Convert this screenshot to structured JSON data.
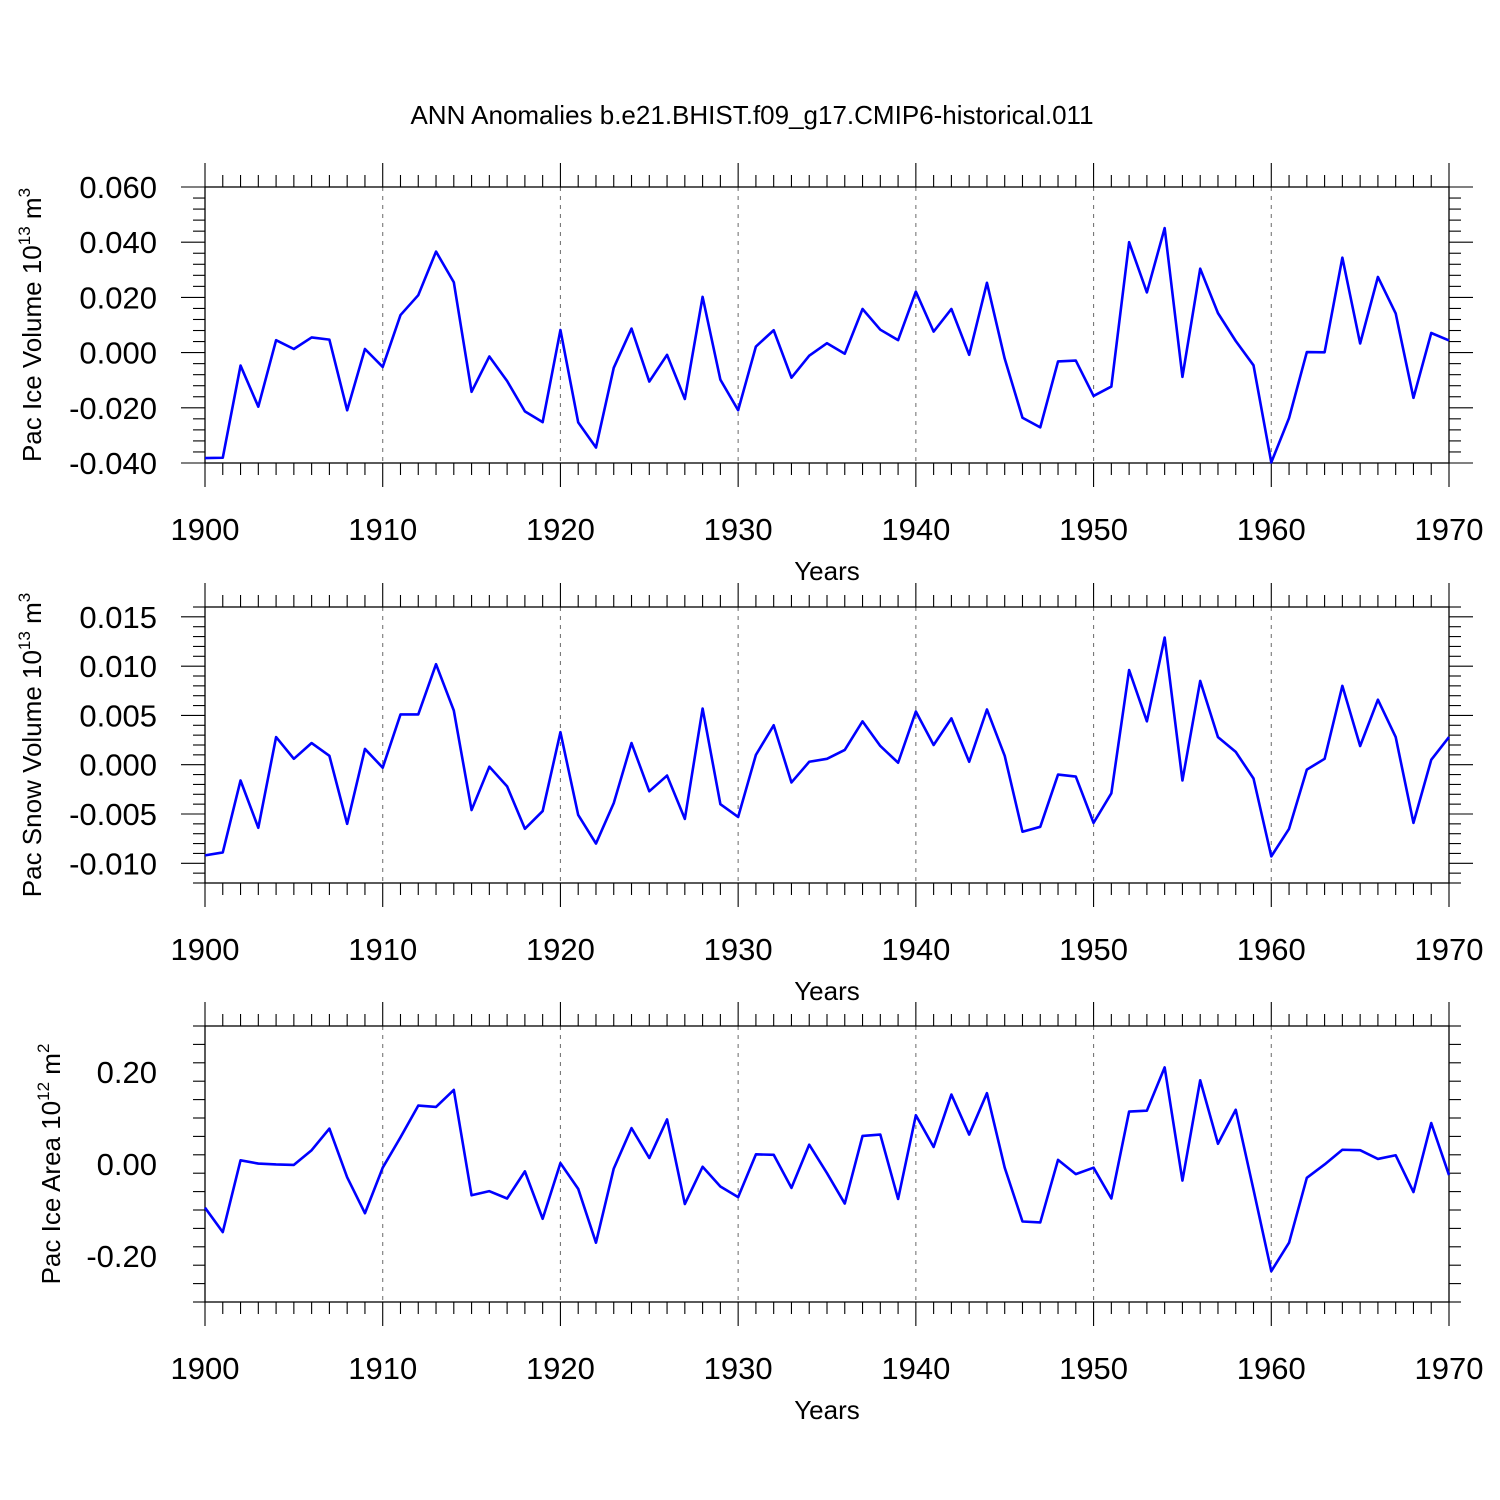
{
  "title": "ANN Anomalies b.e21.BHIST.f09_g17.CMIP6-historical.011",
  "line_color": "#0000ff",
  "chart_data": [
    {
      "type": "line",
      "title": "",
      "xlabel": "Years",
      "ylabel": {
        "main": "Pac Ice Volume 10",
        "exp1": "13",
        "unit": " m",
        "exp2": "3"
      },
      "xlim": [
        1900,
        1970
      ],
      "ylim": [
        -0.04,
        0.06
      ],
      "yticks": [
        -0.04,
        -0.02,
        0.0,
        0.02,
        0.04,
        0.06
      ],
      "ytick_labels": [
        "-0.040",
        "-0.020",
        "0.000",
        "0.020",
        "0.040",
        "0.060"
      ],
      "xticks": [
        1900,
        1910,
        1920,
        1930,
        1940,
        1950,
        1960,
        1970
      ],
      "xtick_labels": [
        "1900",
        "1910",
        "1920",
        "1930",
        "1940",
        "1950",
        "1960",
        "1970"
      ],
      "grid": "dashed vertical at decades",
      "series": [
        {
          "values": [
            -0.0382,
            -0.0381,
            -0.0047,
            -0.0196,
            0.0045,
            0.0013,
            0.0055,
            0.0047,
            -0.0209,
            0.0013,
            -0.0052,
            0.0136,
            0.0208,
            0.0366,
            0.0255,
            -0.0142,
            -0.0014,
            -0.0103,
            -0.0213,
            -0.0252,
            0.0082,
            -0.0253,
            -0.0344,
            -0.0055,
            0.0087,
            -0.0105,
            -0.0008,
            -0.0168,
            0.0202,
            -0.0098,
            -0.0209,
            0.0022,
            0.0081,
            -0.0091,
            -0.0011,
            0.0034,
            -0.0004,
            0.0158,
            0.0083,
            0.0045,
            0.0221,
            0.0076,
            0.0158,
            -0.0008,
            0.0253,
            -0.0022,
            -0.0236,
            -0.0271,
            -0.0032,
            -0.0029,
            -0.0157,
            -0.0123,
            0.04,
            0.0218,
            0.0451,
            -0.0088,
            0.0304,
            0.0143,
            0.0042,
            -0.0046,
            -0.0398,
            -0.0237,
            0.0002,
            0.0001,
            0.0344,
            0.0033,
            0.0274,
            0.0142,
            -0.0164,
            0.0071,
            0.0044
          ]
        }
      ]
    },
    {
      "type": "line",
      "title": "",
      "xlabel": "Years",
      "ylabel": {
        "main": "Pac Snow Volume 10",
        "exp1": "13",
        "unit": " m",
        "exp2": "3"
      },
      "xlim": [
        1900,
        1970
      ],
      "ylim": [
        -0.012,
        0.016
      ],
      "yticks": [
        -0.01,
        -0.005,
        0.0,
        0.005,
        0.01,
        0.015
      ],
      "ytick_labels": [
        "-0.010",
        "-0.005",
        "0.000",
        "0.005",
        "0.010",
        "0.015"
      ],
      "xticks": [
        1900,
        1910,
        1920,
        1930,
        1940,
        1950,
        1960,
        1970
      ],
      "xtick_labels": [
        "1900",
        "1910",
        "1920",
        "1930",
        "1940",
        "1950",
        "1960",
        "1970"
      ],
      "grid": "dashed vertical at decades",
      "series": [
        {
          "values": [
            -0.0092,
            -0.0089,
            -0.0016,
            -0.0064,
            0.0028,
            0.0006,
            0.0022,
            0.0009,
            -0.006,
            0.0016,
            -0.0003,
            0.0051,
            0.0051,
            0.0102,
            0.0055,
            -0.0046,
            -0.0002,
            -0.0022,
            -0.0065,
            -0.0047,
            0.0033,
            -0.0051,
            -0.008,
            -0.0039,
            0.0022,
            -0.0027,
            -0.0011,
            -0.0055,
            0.0057,
            -0.004,
            -0.0053,
            0.001,
            0.004,
            -0.0018,
            0.0003,
            0.0006,
            0.0015,
            0.0044,
            0.0019,
            0.0002,
            0.0054,
            0.002,
            0.0047,
            0.0003,
            0.0056,
            0.0009,
            -0.0068,
            -0.0063,
            -0.001,
            -0.0012,
            -0.0059,
            -0.0029,
            0.0096,
            0.0044,
            0.0129,
            -0.0016,
            0.0085,
            0.0028,
            0.0013,
            -0.0014,
            -0.0093,
            -0.0065,
            -0.0005,
            0.0006,
            0.008,
            0.0019,
            0.0066,
            0.0028,
            -0.0059,
            0.0005,
            0.0028
          ]
        }
      ]
    },
    {
      "type": "line",
      "title": "",
      "xlabel": "Years",
      "ylabel": {
        "main": "Pac Ice Area 10",
        "exp1": "12",
        "unit": " m",
        "exp2": "2"
      },
      "xlim": [
        1900,
        1970
      ],
      "ylim": [
        -0.3,
        0.3
      ],
      "yticks": [
        -0.2,
        0.0,
        0.2
      ],
      "ytick_labels": [
        "-0.20",
        "0.00",
        "0.20"
      ],
      "xticks": [
        1900,
        1910,
        1920,
        1930,
        1940,
        1950,
        1960,
        1970
      ],
      "xtick_labels": [
        "1900",
        "1910",
        "1920",
        "1930",
        "1940",
        "1950",
        "1960",
        "1970"
      ],
      "grid": "dashed vertical at decades",
      "series": [
        {
          "values": [
            -0.095,
            -0.148,
            0.008,
            0.001,
            -0.001,
            -0.002,
            0.03,
            0.077,
            -0.029,
            -0.107,
            -0.008,
            0.058,
            0.127,
            0.124,
            0.161,
            -0.068,
            -0.059,
            -0.075,
            -0.016,
            -0.119,
            0.002,
            -0.054,
            -0.171,
            -0.01,
            0.078,
            0.013,
            0.097,
            -0.087,
            -0.006,
            -0.049,
            -0.072,
            0.021,
            0.02,
            -0.052,
            0.042,
            -0.02,
            -0.086,
            0.061,
            0.064,
            -0.076,
            0.106,
            0.037,
            0.151,
            0.064,
            0.154,
            -0.008,
            -0.125,
            -0.127,
            0.009,
            -0.022,
            -0.008,
            -0.075,
            0.114,
            0.116,
            0.21,
            -0.036,
            0.182,
            0.044,
            0.118,
            -0.056,
            -0.233,
            -0.171,
            -0.03,
            -0.001,
            0.031,
            0.03,
            0.011,
            0.019,
            -0.061,
            0.089,
            -0.024
          ]
        }
      ]
    }
  ]
}
